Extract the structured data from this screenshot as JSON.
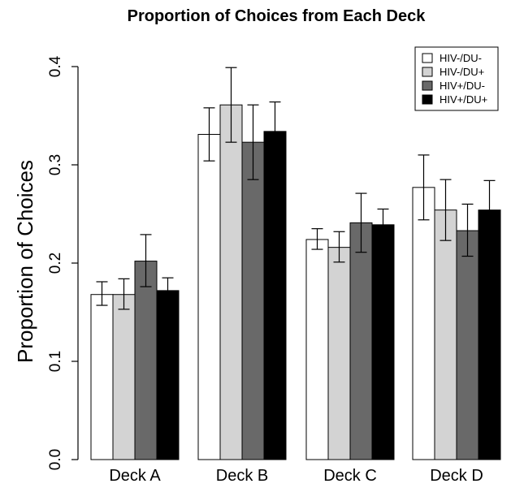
{
  "chart_data": {
    "type": "bar",
    "title": "Proportion of Choices from Each Deck",
    "xlabel": "",
    "ylabel": "Proportion of Choices",
    "ylim": [
      0,
      0.4
    ],
    "yticks": [
      "0.0",
      "0.1",
      "0.2",
      "0.3",
      "0.4"
    ],
    "categories": [
      "Deck A",
      "Deck B",
      "Deck C",
      "Deck D"
    ],
    "legend_position": "top-right",
    "series": [
      {
        "name": "HIV-/DU-",
        "color": "#ffffff",
        "values": [
          0.168,
          0.331,
          0.224,
          0.277
        ],
        "error_low": [
          0.157,
          0.304,
          0.214,
          0.244
        ],
        "error_high": [
          0.181,
          0.358,
          0.235,
          0.31
        ]
      },
      {
        "name": "HIV-/DU+",
        "color": "#d3d3d3",
        "values": [
          0.168,
          0.361,
          0.216,
          0.254
        ],
        "error_low": [
          0.153,
          0.323,
          0.201,
          0.223
        ],
        "error_high": [
          0.184,
          0.399,
          0.232,
          0.285
        ]
      },
      {
        "name": "HIV+/DU-",
        "color": "#696969",
        "values": [
          0.202,
          0.323,
          0.241,
          0.233
        ],
        "error_low": [
          0.176,
          0.285,
          0.211,
          0.207
        ],
        "error_high": [
          0.229,
          0.361,
          0.271,
          0.26
        ]
      },
      {
        "name": "HIV+/DU+",
        "color": "#000000",
        "values": [
          0.172,
          0.334,
          0.239,
          0.254
        ],
        "error_low": [
          0.16,
          0.305,
          0.224,
          0.224
        ],
        "error_high": [
          0.185,
          0.364,
          0.255,
          0.284
        ]
      }
    ]
  }
}
